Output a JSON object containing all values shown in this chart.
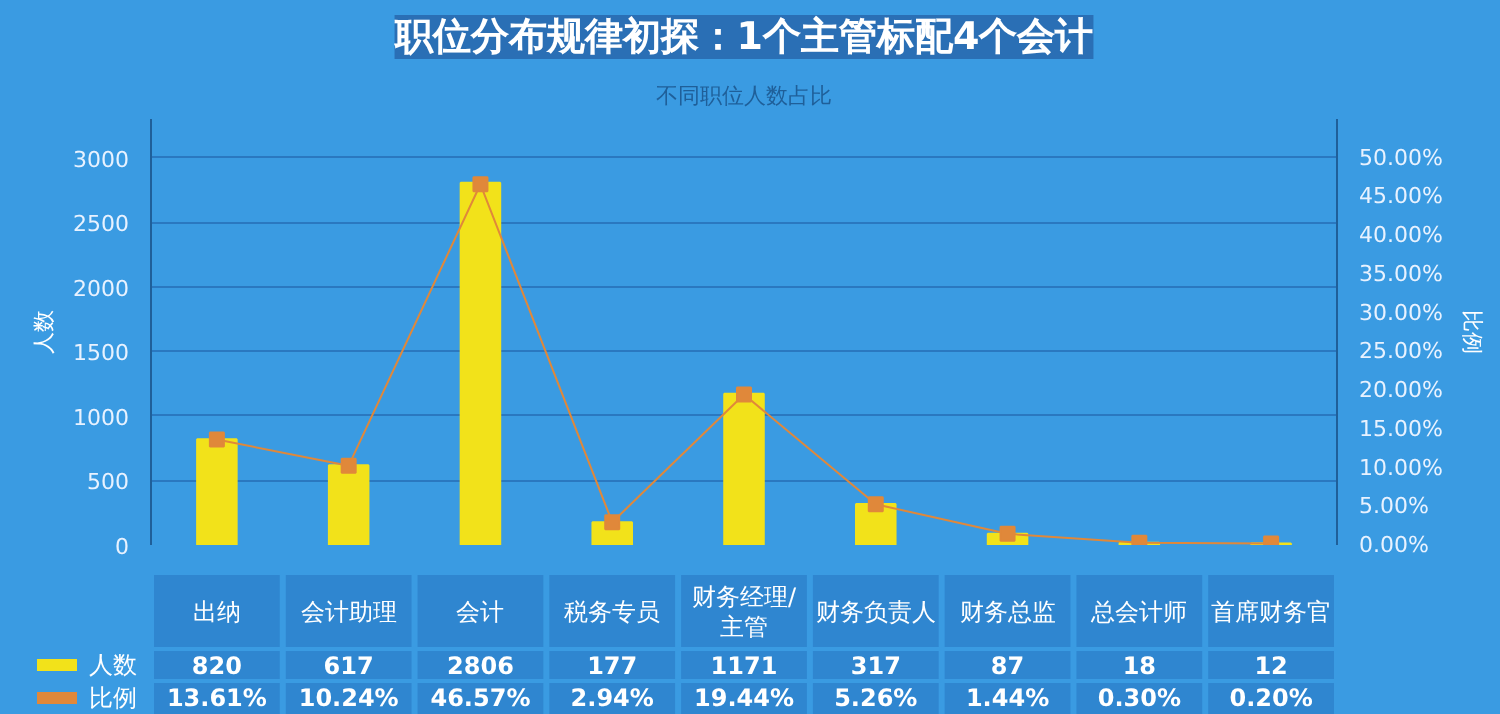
{
  "chart_data": {
    "type": "bar",
    "title": "职位分布规律初探：1个主管标配4个会计",
    "subtitle": "不同职位人数占比",
    "ylabel": "人数",
    "y2label": "比例",
    "categories": [
      "出纳",
      "会计助理",
      "会计",
      "税务专员",
      "财务经理/主管",
      "财务负责人",
      "财务总监",
      "总会计师",
      "首席财务官"
    ],
    "series": [
      {
        "name": "人数",
        "color": "#f2e21a",
        "values": [
          820,
          617,
          2806,
          177,
          1171,
          317,
          87,
          18,
          12
        ],
        "value_labels": [
          "820",
          "617",
          "2806",
          "177",
          "1171",
          "317",
          "87",
          "18",
          "12"
        ]
      },
      {
        "name": "比例",
        "type": "line",
        "axis": "y2",
        "marker": "square",
        "color": "#e0883a",
        "values": [
          13.61,
          10.24,
          46.57,
          2.94,
          19.44,
          5.26,
          1.44,
          0.3,
          0.2
        ],
        "value_labels": [
          "13.61%",
          "10.24%",
          "46.57%",
          "2.94%",
          "19.44%",
          "5.26%",
          "1.44%",
          "0.30%",
          "0.20%"
        ]
      }
    ],
    "ylim": [
      0,
      3300
    ],
    "yticks": [
      0,
      500,
      1000,
      1500,
      2000,
      2500,
      3000
    ],
    "y2lim": [
      0,
      55
    ],
    "y2ticks": [
      {
        "value": 0,
        "label": "0.00%"
      },
      {
        "value": 5,
        "label": "5.00%"
      },
      {
        "value": 10,
        "label": "10.00%"
      },
      {
        "value": 15,
        "label": "15.00%"
      },
      {
        "value": 20,
        "label": "20.00%"
      },
      {
        "value": 25,
        "label": "25.00%"
      },
      {
        "value": 30,
        "label": "30.00%"
      },
      {
        "value": 35,
        "label": "35.00%"
      },
      {
        "value": 40,
        "label": "40.00%"
      },
      {
        "value": 45,
        "label": "45.00%"
      },
      {
        "value": 50,
        "label": "50.00%"
      }
    ],
    "grid": "y",
    "legend": "bottom left"
  }
}
